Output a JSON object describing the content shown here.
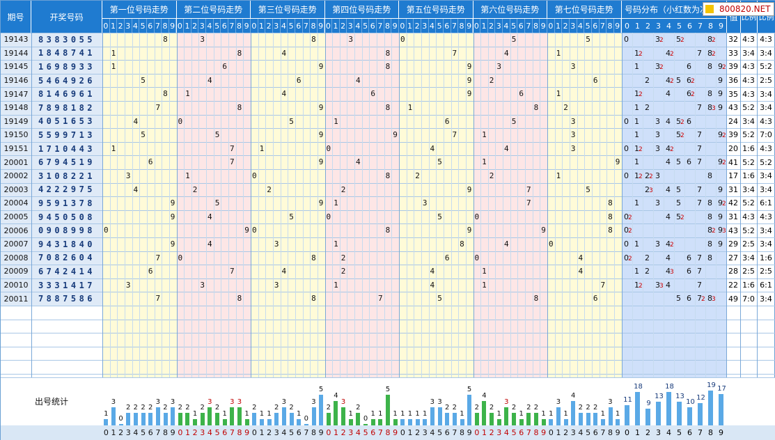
{
  "header": {
    "issue_label": "期号",
    "draw_label": "开奖号码",
    "positions": [
      "第一位号码走势",
      "第二位号码走势",
      "第三位号码走势",
      "第四位号码走势",
      "第五位号码走势",
      "第六位号码走势",
      "第七位号码走势"
    ],
    "dist_label": "号码分布（小红数为次",
    "sum_label": "值",
    "ratio1_label": "比例",
    "ratio2_label": "比例",
    "logo_text": "800820.NET"
  },
  "digits": [
    "0",
    "1",
    "2",
    "3",
    "4",
    "5",
    "6",
    "7",
    "8",
    "9"
  ],
  "rows": [
    {
      "issue": "19143",
      "draw": "8383055",
      "sum": "32",
      "r1": "4:3",
      "r2": "4:3"
    },
    {
      "issue": "19144",
      "draw": "1848741",
      "sum": "33",
      "r1": "3:4",
      "r2": "3:4"
    },
    {
      "issue": "19145",
      "draw": "1698933",
      "sum": "39",
      "r1": "4:3",
      "r2": "5:2"
    },
    {
      "issue": "19146",
      "draw": "5464926",
      "sum": "36",
      "r1": "4:3",
      "r2": "2:5"
    },
    {
      "issue": "19147",
      "draw": "8146961",
      "sum": "35",
      "r1": "4:3",
      "r2": "3:4"
    },
    {
      "issue": "19148",
      "draw": "7898182",
      "sum": "43",
      "r1": "5:2",
      "r2": "3:4"
    },
    {
      "issue": "19149",
      "draw": "4051653",
      "sum": "24",
      "r1": "3:4",
      "r2": "4:3"
    },
    {
      "issue": "19150",
      "draw": "5599713",
      "sum": "39",
      "r1": "5:2",
      "r2": "7:0"
    },
    {
      "issue": "19151",
      "draw": "1710443",
      "sum": "20",
      "r1": "1:6",
      "r2": "4:3"
    },
    {
      "issue": "20001",
      "draw": "6794519",
      "sum": "41",
      "r1": "5:2",
      "r2": "5:2"
    },
    {
      "issue": "20002",
      "draw": "3108221",
      "sum": "17",
      "r1": "1:6",
      "r2": "3:4"
    },
    {
      "issue": "20003",
      "draw": "4222975",
      "sum": "31",
      "r1": "3:4",
      "r2": "3:4"
    },
    {
      "issue": "20004",
      "draw": "9591378",
      "sum": "42",
      "r1": "5:2",
      "r2": "6:1"
    },
    {
      "issue": "20005",
      "draw": "9450508",
      "sum": "31",
      "r1": "4:3",
      "r2": "4:3"
    },
    {
      "issue": "20006",
      "draw": "0908998",
      "sum": "43",
      "r1": "5:2",
      "r2": "3:4"
    },
    {
      "issue": "20007",
      "draw": "9431840",
      "sum": "29",
      "r1": "2:5",
      "r2": "3:4"
    },
    {
      "issue": "20008",
      "draw": "7082604",
      "sum": "27",
      "r1": "3:4",
      "r2": "1:6"
    },
    {
      "issue": "20009",
      "draw": "6742414",
      "sum": "28",
      "r1": "2:5",
      "r2": "2:5"
    },
    {
      "issue": "20010",
      "draw": "3331417",
      "sum": "22",
      "r1": "1:6",
      "r2": "6:1"
    },
    {
      "issue": "20011",
      "draw": "7887586",
      "sum": "49",
      "r1": "7:0",
      "r2": "3:4"
    }
  ],
  "stats_label": "出号统计",
  "position_counts": [
    [
      1,
      3,
      0,
      2,
      2,
      2,
      2,
      3,
      2,
      3
    ],
    [
      2,
      2,
      1,
      2,
      3,
      2,
      1,
      3,
      3,
      1
    ],
    [
      2,
      1,
      1,
      2,
      3,
      2,
      1,
      0,
      3,
      5
    ],
    [
      2,
      4,
      3,
      1,
      2,
      0,
      1,
      1,
      5,
      1
    ],
    [
      1,
      1,
      1,
      1,
      3,
      3,
      2,
      2,
      1,
      5
    ],
    [
      2,
      4,
      2,
      1,
      3,
      2,
      1,
      2,
      2,
      1
    ],
    [
      1,
      3,
      1,
      4,
      2,
      2,
      2,
      1,
      3,
      1
    ]
  ],
  "dist_counts": [
    11,
    18,
    9,
    13,
    18,
    13,
    10,
    12,
    19,
    17
  ],
  "colors": {
    "header": "#1f7bd0",
    "yellow": "#fffbd8",
    "pink": "#fde6e6",
    "blue": "#cfe0fa",
    "left": "#dfeaf7",
    "bar_blue": "#5aa9e6",
    "bar_green": "#3db34a",
    "red": "#c00000"
  }
}
